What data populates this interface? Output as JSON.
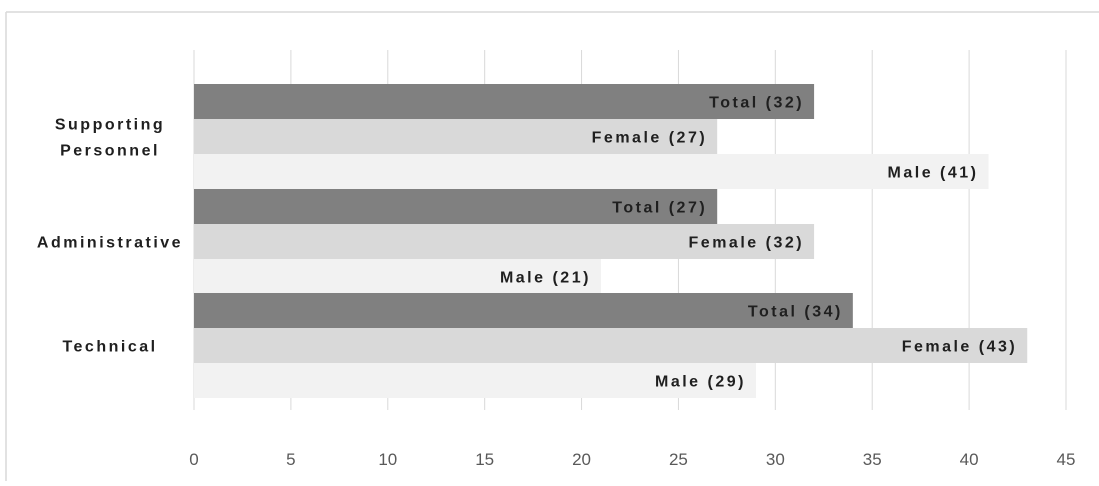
{
  "chart_data": {
    "type": "bar",
    "orientation": "horizontal",
    "categories": [
      "Supporting Personnel",
      "Administrative",
      "Technical"
    ],
    "category_lines": [
      [
        "Supporting",
        "Personnel"
      ],
      [
        "Administrative"
      ],
      [
        "Technical"
      ]
    ],
    "series": [
      {
        "values": [
          32,
          27,
          34
        ],
        "label_prefix": "Total",
        "color": "#808080"
      },
      {
        "values": [
          27,
          32,
          43
        ],
        "label_prefix": "Female",
        "color": "#d9d9d9"
      },
      {
        "values": [
          41,
          21,
          29
        ],
        "label_prefix": "Male",
        "color": "#f2f2f2"
      }
    ],
    "xlim": [
      0,
      45
    ],
    "xticks": [
      0,
      5,
      10,
      15,
      20,
      25,
      30,
      35,
      40,
      45
    ],
    "grid": true,
    "legend": "none"
  }
}
